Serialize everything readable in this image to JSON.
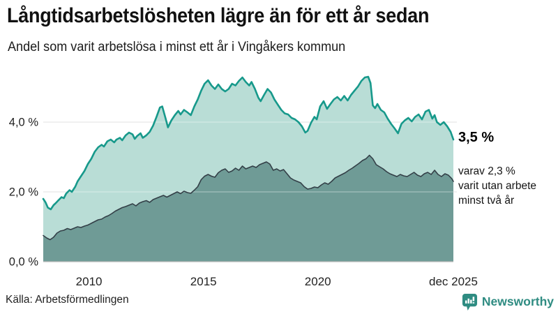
{
  "header": {
    "title": "Långtidsarbetslösheten lägre än för ett år sedan",
    "subtitle": "Andel som varit arbetslösa i minst ett år i Vingåkers kommun"
  },
  "annotations": {
    "total_label": "3,5 %",
    "two_year_line1": "varav 2,3 %",
    "two_year_line2": "varit utan arbete",
    "two_year_line3": "minst två år"
  },
  "footer": {
    "source": "Källa: Arbetsförmedlingen",
    "brand": "Newsworthy"
  },
  "colors": {
    "total_line": "#17998b",
    "total_fill": "#b9ddd6",
    "two_year_line": "#333f47",
    "two_year_fill": "#6f9b96",
    "gridline": "#dcdcdc",
    "baseline": "#b8b8b8",
    "axis_text": "#222222",
    "brand_teal": "#2f8c82"
  },
  "chart_data": {
    "type": "area",
    "title": "Långtidsarbetslösheten lägre än för ett år sedan",
    "subtitle": "Andel som varit arbetslösa i minst ett år i Vingåkers kommun",
    "unit": "%",
    "grid": "horizontal",
    "legend": "none",
    "x_range": [
      2008.0,
      2025.92
    ],
    "ylim": [
      0,
      5.6
    ],
    "y_ticks": [
      {
        "v": 0,
        "label": "0,0 %"
      },
      {
        "v": 2,
        "label": "2,0 %"
      },
      {
        "v": 4,
        "label": "4,0 %"
      }
    ],
    "x_ticks": [
      {
        "x": 2010,
        "label": "2010"
      },
      {
        "x": 2015,
        "label": "2015"
      },
      {
        "x": 2020,
        "label": "2020"
      },
      {
        "x": 2025.92,
        "label": "dec 2025"
      }
    ],
    "series": [
      {
        "name": "Arbetslösa minst ett år",
        "latest_value": 3.5,
        "points": [
          [
            2008.0,
            1.8
          ],
          [
            2008.1,
            1.7
          ],
          [
            2008.2,
            1.55
          ],
          [
            2008.33,
            1.5
          ],
          [
            2008.45,
            1.62
          ],
          [
            2008.55,
            1.68
          ],
          [
            2008.65,
            1.75
          ],
          [
            2008.8,
            1.85
          ],
          [
            2008.9,
            1.82
          ],
          [
            2009.0,
            1.95
          ],
          [
            2009.15,
            2.05
          ],
          [
            2009.25,
            2.0
          ],
          [
            2009.4,
            2.15
          ],
          [
            2009.5,
            2.3
          ],
          [
            2009.65,
            2.45
          ],
          [
            2009.8,
            2.6
          ],
          [
            2009.95,
            2.8
          ],
          [
            2010.1,
            2.95
          ],
          [
            2010.25,
            3.15
          ],
          [
            2010.4,
            3.28
          ],
          [
            2010.55,
            3.35
          ],
          [
            2010.65,
            3.3
          ],
          [
            2010.8,
            3.45
          ],
          [
            2010.95,
            3.5
          ],
          [
            2011.1,
            3.42
          ],
          [
            2011.2,
            3.5
          ],
          [
            2011.35,
            3.55
          ],
          [
            2011.45,
            3.48
          ],
          [
            2011.6,
            3.62
          ],
          [
            2011.75,
            3.7
          ],
          [
            2011.9,
            3.65
          ],
          [
            2012.0,
            3.52
          ],
          [
            2012.1,
            3.6
          ],
          [
            2012.25,
            3.68
          ],
          [
            2012.35,
            3.55
          ],
          [
            2012.5,
            3.62
          ],
          [
            2012.65,
            3.72
          ],
          [
            2012.8,
            3.9
          ],
          [
            2012.95,
            4.15
          ],
          [
            2013.1,
            4.42
          ],
          [
            2013.2,
            4.45
          ],
          [
            2013.35,
            4.1
          ],
          [
            2013.45,
            3.85
          ],
          [
            2013.6,
            4.05
          ],
          [
            2013.75,
            4.2
          ],
          [
            2013.9,
            4.32
          ],
          [
            2014.0,
            4.22
          ],
          [
            2014.15,
            4.35
          ],
          [
            2014.3,
            4.28
          ],
          [
            2014.45,
            4.2
          ],
          [
            2014.6,
            4.45
          ],
          [
            2014.75,
            4.65
          ],
          [
            2014.9,
            4.9
          ],
          [
            2015.05,
            5.1
          ],
          [
            2015.2,
            5.2
          ],
          [
            2015.35,
            5.05
          ],
          [
            2015.5,
            4.95
          ],
          [
            2015.65,
            5.08
          ],
          [
            2015.8,
            4.95
          ],
          [
            2015.95,
            4.88
          ],
          [
            2016.1,
            4.95
          ],
          [
            2016.25,
            5.1
          ],
          [
            2016.4,
            5.05
          ],
          [
            2016.55,
            5.18
          ],
          [
            2016.7,
            5.28
          ],
          [
            2016.85,
            5.15
          ],
          [
            2017.0,
            5.05
          ],
          [
            2017.1,
            5.15
          ],
          [
            2017.25,
            4.95
          ],
          [
            2017.4,
            4.7
          ],
          [
            2017.5,
            4.6
          ],
          [
            2017.65,
            4.78
          ],
          [
            2017.8,
            4.95
          ],
          [
            2017.95,
            4.85
          ],
          [
            2018.1,
            4.65
          ],
          [
            2018.25,
            4.5
          ],
          [
            2018.4,
            4.35
          ],
          [
            2018.55,
            4.25
          ],
          [
            2018.7,
            4.22
          ],
          [
            2018.85,
            4.12
          ],
          [
            2019.0,
            4.08
          ],
          [
            2019.15,
            4.0
          ],
          [
            2019.3,
            3.88
          ],
          [
            2019.45,
            3.7
          ],
          [
            2019.55,
            3.75
          ],
          [
            2019.7,
            3.98
          ],
          [
            2019.85,
            4.15
          ],
          [
            2019.95,
            4.08
          ],
          [
            2020.1,
            4.45
          ],
          [
            2020.25,
            4.6
          ],
          [
            2020.4,
            4.38
          ],
          [
            2020.55,
            4.52
          ],
          [
            2020.7,
            4.65
          ],
          [
            2020.85,
            4.72
          ],
          [
            2021.0,
            4.62
          ],
          [
            2021.15,
            4.75
          ],
          [
            2021.3,
            4.62
          ],
          [
            2021.45,
            4.78
          ],
          [
            2021.6,
            4.9
          ],
          [
            2021.75,
            5.02
          ],
          [
            2021.9,
            5.18
          ],
          [
            2022.05,
            5.28
          ],
          [
            2022.2,
            5.3
          ],
          [
            2022.3,
            5.12
          ],
          [
            2022.4,
            4.48
          ],
          [
            2022.5,
            4.4
          ],
          [
            2022.6,
            4.52
          ],
          [
            2022.75,
            4.35
          ],
          [
            2022.9,
            4.28
          ],
          [
            2023.05,
            4.1
          ],
          [
            2023.2,
            3.95
          ],
          [
            2023.35,
            3.82
          ],
          [
            2023.5,
            3.68
          ],
          [
            2023.65,
            3.95
          ],
          [
            2023.8,
            4.05
          ],
          [
            2023.95,
            4.12
          ],
          [
            2024.1,
            4.02
          ],
          [
            2024.25,
            4.15
          ],
          [
            2024.4,
            4.22
          ],
          [
            2024.55,
            4.08
          ],
          [
            2024.7,
            4.3
          ],
          [
            2024.85,
            4.35
          ],
          [
            2025.0,
            4.1
          ],
          [
            2025.1,
            4.2
          ],
          [
            2025.2,
            4.0
          ],
          [
            2025.35,
            3.92
          ],
          [
            2025.5,
            4.0
          ],
          [
            2025.65,
            3.88
          ],
          [
            2025.8,
            3.72
          ],
          [
            2025.92,
            3.5
          ]
        ]
      },
      {
        "name": "Arbetslösa minst två år",
        "latest_value": 2.3,
        "points": [
          [
            2008.0,
            0.75
          ],
          [
            2008.15,
            0.68
          ],
          [
            2008.3,
            0.63
          ],
          [
            2008.45,
            0.7
          ],
          [
            2008.6,
            0.82
          ],
          [
            2008.75,
            0.88
          ],
          [
            2008.9,
            0.9
          ],
          [
            2009.05,
            0.95
          ],
          [
            2009.2,
            0.92
          ],
          [
            2009.35,
            0.96
          ],
          [
            2009.5,
            1.0
          ],
          [
            2009.65,
            0.98
          ],
          [
            2009.8,
            1.02
          ],
          [
            2009.95,
            1.05
          ],
          [
            2010.1,
            1.1
          ],
          [
            2010.25,
            1.15
          ],
          [
            2010.4,
            1.2
          ],
          [
            2010.55,
            1.22
          ],
          [
            2010.7,
            1.28
          ],
          [
            2010.85,
            1.32
          ],
          [
            2011.0,
            1.38
          ],
          [
            2011.15,
            1.45
          ],
          [
            2011.3,
            1.5
          ],
          [
            2011.45,
            1.55
          ],
          [
            2011.6,
            1.58
          ],
          [
            2011.75,
            1.62
          ],
          [
            2011.9,
            1.66
          ],
          [
            2012.05,
            1.6
          ],
          [
            2012.2,
            1.68
          ],
          [
            2012.35,
            1.72
          ],
          [
            2012.5,
            1.75
          ],
          [
            2012.65,
            1.7
          ],
          [
            2012.8,
            1.78
          ],
          [
            2012.95,
            1.82
          ],
          [
            2013.1,
            1.86
          ],
          [
            2013.25,
            1.9
          ],
          [
            2013.4,
            1.85
          ],
          [
            2013.55,
            1.9
          ],
          [
            2013.7,
            1.95
          ],
          [
            2013.85,
            2.0
          ],
          [
            2014.0,
            1.95
          ],
          [
            2014.15,
            2.02
          ],
          [
            2014.3,
            1.98
          ],
          [
            2014.45,
            1.96
          ],
          [
            2014.6,
            2.05
          ],
          [
            2014.75,
            2.15
          ],
          [
            2014.9,
            2.35
          ],
          [
            2015.05,
            2.45
          ],
          [
            2015.2,
            2.5
          ],
          [
            2015.35,
            2.45
          ],
          [
            2015.5,
            2.42
          ],
          [
            2015.65,
            2.55
          ],
          [
            2015.8,
            2.62
          ],
          [
            2015.95,
            2.66
          ],
          [
            2016.1,
            2.56
          ],
          [
            2016.25,
            2.6
          ],
          [
            2016.4,
            2.68
          ],
          [
            2016.55,
            2.62
          ],
          [
            2016.7,
            2.74
          ],
          [
            2016.85,
            2.66
          ],
          [
            2017.0,
            2.7
          ],
          [
            2017.15,
            2.74
          ],
          [
            2017.3,
            2.7
          ],
          [
            2017.45,
            2.78
          ],
          [
            2017.6,
            2.82
          ],
          [
            2017.75,
            2.86
          ],
          [
            2017.9,
            2.8
          ],
          [
            2018.05,
            2.62
          ],
          [
            2018.2,
            2.66
          ],
          [
            2018.35,
            2.6
          ],
          [
            2018.5,
            2.64
          ],
          [
            2018.65,
            2.52
          ],
          [
            2018.8,
            2.4
          ],
          [
            2018.95,
            2.34
          ],
          [
            2019.1,
            2.3
          ],
          [
            2019.25,
            2.26
          ],
          [
            2019.4,
            2.15
          ],
          [
            2019.55,
            2.08
          ],
          [
            2019.7,
            2.1
          ],
          [
            2019.85,
            2.14
          ],
          [
            2020.0,
            2.12
          ],
          [
            2020.15,
            2.2
          ],
          [
            2020.3,
            2.26
          ],
          [
            2020.45,
            2.22
          ],
          [
            2020.6,
            2.3
          ],
          [
            2020.75,
            2.4
          ],
          [
            2020.9,
            2.45
          ],
          [
            2021.05,
            2.5
          ],
          [
            2021.2,
            2.55
          ],
          [
            2021.35,
            2.62
          ],
          [
            2021.5,
            2.68
          ],
          [
            2021.65,
            2.75
          ],
          [
            2021.8,
            2.82
          ],
          [
            2021.95,
            2.9
          ],
          [
            2022.1,
            2.95
          ],
          [
            2022.25,
            3.05
          ],
          [
            2022.4,
            2.95
          ],
          [
            2022.55,
            2.78
          ],
          [
            2022.7,
            2.72
          ],
          [
            2022.85,
            2.66
          ],
          [
            2023.0,
            2.58
          ],
          [
            2023.15,
            2.52
          ],
          [
            2023.3,
            2.48
          ],
          [
            2023.45,
            2.44
          ],
          [
            2023.6,
            2.5
          ],
          [
            2023.75,
            2.46
          ],
          [
            2023.9,
            2.44
          ],
          [
            2024.05,
            2.5
          ],
          [
            2024.2,
            2.56
          ],
          [
            2024.35,
            2.48
          ],
          [
            2024.5,
            2.44
          ],
          [
            2024.65,
            2.52
          ],
          [
            2024.8,
            2.56
          ],
          [
            2024.95,
            2.5
          ],
          [
            2025.1,
            2.62
          ],
          [
            2025.25,
            2.5
          ],
          [
            2025.4,
            2.44
          ],
          [
            2025.55,
            2.52
          ],
          [
            2025.7,
            2.48
          ],
          [
            2025.85,
            2.38
          ],
          [
            2025.92,
            2.3
          ]
        ]
      }
    ]
  }
}
